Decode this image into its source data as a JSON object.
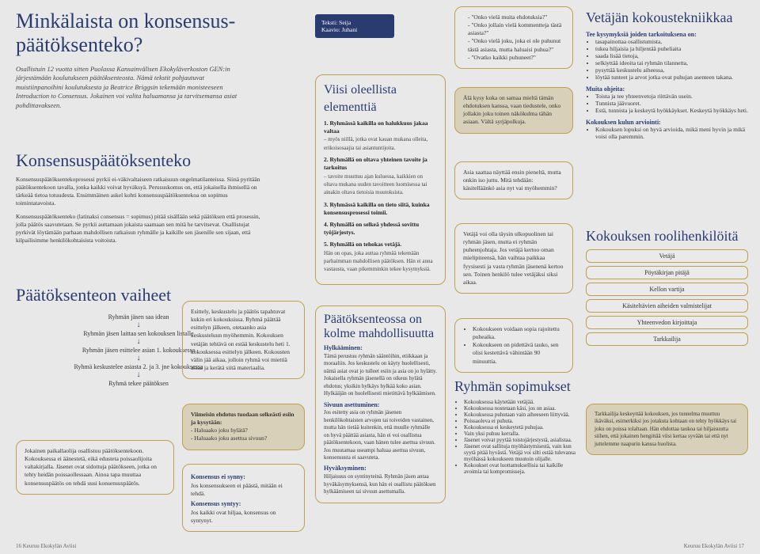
{
  "title": "Minkälaista on konsensus-päätöksenteko?",
  "intro": "Osallistuin 12 vuotta sitten Puolassa Kansainvälisen Ekokyläverkoston GEN:in järjestämään koulutukseen päätöksenteosta. Nämä tekstit pohjautuvat muistiinpanoihini koulutuksesta ja Beatrice Briggsin tekemään monisteeseen Introduction to Consensus. Jokainen voi valita haluamansa ja tarvitsemansa asiat pohdittavakseen.",
  "credits": {
    "teksti": "Teksti: Seija",
    "kaavio": "Kaavio: Juhani"
  },
  "konsensus": {
    "heading": "Konsensuspäätöksenteko",
    "p1": "Konsensuspäätöksentekoprosessi pyrkii ei-väkivaltaiseen ratkaisuun ongelmatilanteissa. Siinä pyritään päätöksentekoon tavalla, jonka kaikki voivat hyväksyä. Perususkomus on, että jokaisella ihmisellä on tärkeää tietoa totuudesta. Ensimmäinen askel kohti konsensuspäätöksentekoa on sopimus toimintatavoista.",
    "p2": "Konsensuspäätöksenteko (latinaksi consensus = sopimus) pitää sisällään sekä päätöksen että prosessin, jolla päätös saavutetaan. Se pyrkii auttamaan jokaista saamaan sen mitä he tarvitsevat. Osallistujat pyrkivät löytämään parhaan mahdollisen ratkaisun ryhmälle ja kaikille sen jäsenille sen sijaan, että kilpailisimme henkilökohtaisista voitoista."
  },
  "vaiheet": {
    "heading": "Päätöksenteon vaiheet",
    "steps": [
      "Ryhmän jäsen saa idean",
      "Ryhmän jäsen laittaa sen kokouksen listalle",
      "Ryhmän jäsen esittelee asian 1. kokouksessa",
      "Ryhmä keskustelee asiasta 2. ja 3. jne kokouksessa",
      "Ryhmä tekee päätöksen"
    ]
  },
  "note_paikallaolijat": "Jokainen paikallaolija osallistuu päätöksentekoon. Kokouksessa ei äänestetä, eikä edusteta poissaolijoita valtakirjalla. Jäsenet ovat sidottuja päätökseen, jotka on tehty heidän poissaollessaan. Ainoa tapa muuttaa konsensuspäätös on tehdä uusi konsensuspäätös.",
  "esittely": "Esittely, keskustelu ja päätös tapahtuvat kukin eri kokouksissa. Ryhmä päättää esittelyn jälkeen, otetaanko asia keskusteluun myöhemmin. Kokouksen vetäjän tehtävä on estää keskustelu heti 1. kokouksessa esittelyn jälkeen. Kokousten välin jää aikaa, jolloin ryhmä voi miettiä asiaa ja kerätä siitä materiaalia.",
  "viimeisin": {
    "t": "Viimeisin ehdotus tuodaan selkeästi esiin ja kysytään:",
    "q1": "- Haluaako joku hylätä?",
    "q2": "- Haluaako joku asettua sivuun?"
  },
  "ei_synny": {
    "h1": "Konsensus ei synny:",
    "p1": "Jos konsensukseen ei päästä, mitään ei tehdä.",
    "h2": "Konsensus syntyy:",
    "p2": "Jos kaikki ovat hiljaa, konsensus on syntynyt."
  },
  "viisi": {
    "heading": "Viisi oleellista elementtiä",
    "items": [
      {
        "b": "1. Ryhmässä kaikilla on halukkuus jakaa valtaa",
        "s": "– myös niillä, jotka ovat kauan mukana olleita, erikoisosaajia tai asiantuntijoita."
      },
      {
        "b": "2. Ryhmällä on oltava yhteinen tavoite ja tarkoitus",
        "s": "– tavoite muuttuu ajan kuluessa, kaikkien on oltava mukana uuden tavoitteen luomisessa tai ainakin oltava tietoisia muutoksista."
      },
      {
        "b": "3. Ryhmässä kaikilla on tieto siitä, kuinka konsensusprosessi toimii.",
        "s": ""
      },
      {
        "b": "4. Ryhmällä on selkeä yhdessä sovittu työjärjestys.",
        "s": ""
      },
      {
        "b": "5. Ryhmällä on tehokas vetäjä.",
        "s": "Hän on opas, joka auttaa ryhmää tekemään parhaimman mahdollisen päätöksen. Hän ei anna vastausta, vaan pikemminkin tekee kysymyksiä."
      }
    ]
  },
  "kolme": {
    "heading": "Päätöksenteossa on kolme mahdollisuutta",
    "hyl_h": "Hylkääminen:",
    "hyl_p": "Tämä perustuu ryhmän sääntöihin, etiikkaan ja moraaliin. Jos keskustelu on käyty huolellisesti, nämä asiat ovat jo tulleet esiin ja asia on jo hylätty. Jokaisella ryhmän jäsenellä on oikeus hylätä ehdotus; yksikin hylkäys hylkää koko asian. Hylkääjän on huolellisesti mietittävä hylkäämisen.",
    "siv_h": "Sivuun asettuminen:",
    "siv_p": "Jos esitetty asia on ryhmän jäsenen henkilökohtaisten arvojen tai toiveiden vastainen, mutta hän tietää kuitenkin, että muulle ryhmälle on hyvä päättää asiasta, hän ei voi osallistua päätöksentekoon, vaan hänen tulee asettua sivuun. Jos muutamaa useampi haluaa asettua sivuun, konsensusta ei saavuteta.",
    "hyv_h": "Hyväksyminen:",
    "hyv_p": "Hiljaisuus on syntinyteinä. Ryhmän jäsen antaa hyväkäsymyksensä, kun hän ei osallistu päätöksen hylkäämiseen tai sivuun asettumalla."
  },
  "questions": [
    "\"Onko vielä muita ehdotuksia?\"",
    "\"Onko jollain vielä kommentteja tästä asiasta?\"",
    "\"Onko vielä joku, joka ei ole puhunut tästä asiasta, mutta haluaisi puhua?\"",
    "\"Ovatko kaikki puhuneet?\""
  ],
  "ala_kysy": "Älä kysy kuka on samaa mieltä tämän ehdotuksen kanssa, vaan tiedustele, onko jollakin joku toinen näkökulma tähän asiaan. Vältä syrjäpolkuja.",
  "asia_saattaa": "Asia saattaa näyttää ensin pieneltä, mutta onkin iso juttu. Mitä tehdään: käsitelläänkö asia nyt vai myöhemmin?",
  "vetaja_tasin": "Vetäjä voi olla täysin ulkopuolinen tai ryhmän jäsen, mutta ei ryhmän puheenjohtaja. Jos vetäjä kertoo oman mielipiteensä, hän vaihtaa paikkaa fyysisesti ja vasta ryhmän jäsenenä kertoo sen. Toinen henkilö tulee vetäjäksi siksi aikaa.",
  "kokoukseen": [
    "Kokoukseen voidaan sopia rajoitettu puheaika.",
    "Kokoukseen on pidettävä tauko, sen olisi kestettävä vähintään 90 minuuttia."
  ],
  "sopimukset": {
    "heading": "Ryhmän sopimukset",
    "items": [
      "Kokouksessa käytetään vetäjää.",
      "Kokouksessa nostetaan käsi, jos on asiaa.",
      "Kokouksessa puhutaan vain aiheeseen liittyvää.",
      "Poissaoleva ei puhuta.",
      "Kokouksessa ei keskeytetä puhujaa.",
      "Vain yksi puhuu kerralla.",
      "Jäsenet voivat pyytää toistojärjestystä, asialistaa.",
      "Jäsenet ovat sallituja myöhästymisestä, vain kun syytä pitää hyvästä. Vetäjä voi silti estää tulevansa myöhässä kokoukseen muutoin olijalle.",
      "Kokoukset ovat luottamuksellisia tai kaikille avoimia tai kompromisseja."
    ]
  },
  "tekniikka": {
    "heading": "Vetäjän kokoustekniikkaa",
    "p1": "Tee kysymyksiä joiden tarkoituksena on:",
    "list1": [
      "tasapainottaa osallistumista,",
      "tukea hiljaisia ja hiljentää puheliaita",
      "saada lisää tietoja,",
      "selkiyttää ideoita tai ryhmän tilannetta,",
      "pysyttää keskustelu aiheessa,",
      "löytää tunteet ja arvot jotka ovat puhujan asenteen takana."
    ],
    "p2": "Muita ohjeita:",
    "list2": [
      "Toista ja tee yhteenvetoja riittävän usein.",
      "Tunnista jäävuoret.",
      "Estä, tunnista ja keskeytä hyökkäykset. Keskeytä hyökkäys heti."
    ],
    "p3": "Kokouksen kulun arviointi:",
    "list3": [
      "Kokouksen lopuksi on hyvä arvioida, mikä meni hyvin ja mikä voisi olla paremmin."
    ]
  },
  "rooli": {
    "heading": "Kokouksen roolihenkilöitä",
    "roles": [
      "Vetäjä",
      "Pöytäkirjan pitäjä",
      "Kellon vartija",
      "Käsiteltävien aiheiden valmistelijat",
      "Yhteenvedon kirjoittaja",
      "Tarkkailija"
    ]
  },
  "tarkkailija": "Tarkkailija keskeyttää kokouksen, jos tunnelma muuttuu ikäväksi, esimerkiksi jos jotakuta kohtaan on tehty hyökkäys tai joku on poissa tolaltaan. Hän ehdottaa taukoa tai hiljaisuutta siihen, että jokainen hengittää viisi kertaa syvään tai että nyt juttelemme naapurin kanssa huolista.",
  "footer": {
    "left": "16   Keuruu Ekokylän Aviisi",
    "right": "Keuruu Ekokylän Aviisi   17"
  }
}
